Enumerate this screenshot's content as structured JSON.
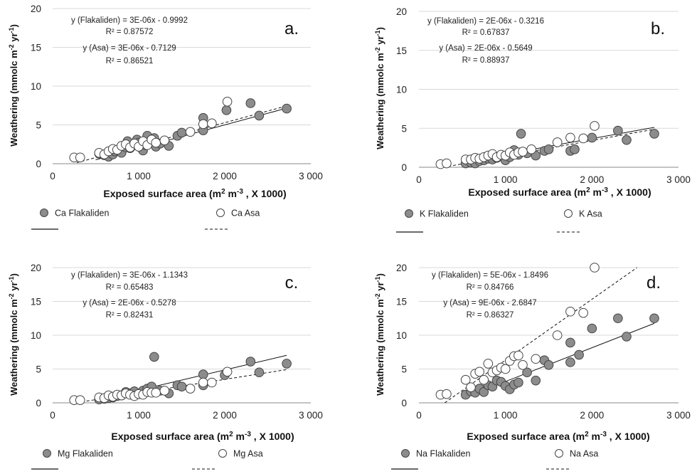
{
  "chart_data": [
    {
      "type": "scatter",
      "panel_label": "a.",
      "ylabel": "Weathering (mmolc m-2 yr-1)",
      "ylabel_main": "Weathering (mmolc m",
      "ylabel_sup1": "-2",
      "ylabel_mid": " yr",
      "ylabel_sup2": "-1",
      "ylabel_end": ")",
      "xlabel": "Exposed surface area (m2 m-3 , X 1000)",
      "xlabel_main": "Exposed surface area (m",
      "xlabel_sup1": "2",
      "xlabel_mid": " m",
      "xlabel_sup2": "-3",
      "xlabel_end": " , X 1000)",
      "xlim": [
        0,
        3000
      ],
      "ylim": [
        0,
        20
      ],
      "x_ticks": [
        "0",
        "1 000",
        "2 000",
        "3 000"
      ],
      "y_ticks": [
        "0",
        "5",
        "10",
        "15",
        "20"
      ],
      "equations": [
        "y (Flakaliden) = 3E-06x - 0.9992",
        "R² = 0.87572",
        "y (Asa) = 3E-06x - 0.7129",
        "R² = 0.86521"
      ],
      "legend": [
        "Ca Flakaliden",
        "Ca Asa"
      ],
      "series": [
        {
          "name": "Ca Flakaliden",
          "fill": "#8c8c8c",
          "points": [
            [
              540,
              1.3
            ],
            [
              600,
              1.1
            ],
            [
              650,
              0.9
            ],
            [
              700,
              1.2
            ],
            [
              720,
              1.6
            ],
            [
              780,
              1.9
            ],
            [
              800,
              1.4
            ],
            [
              850,
              2.1
            ],
            [
              870,
              2.9
            ],
            [
              900,
              2.0
            ],
            [
              950,
              2.4
            ],
            [
              980,
              3.1
            ],
            [
              1000,
              2.7
            ],
            [
              1050,
              1.7
            ],
            [
              1080,
              2.4
            ],
            [
              1100,
              3.6
            ],
            [
              1150,
              2.9
            ],
            [
              1180,
              3.3
            ],
            [
              1200,
              2.2
            ],
            [
              1250,
              2.6
            ],
            [
              1350,
              2.3
            ],
            [
              1450,
              3.6
            ],
            [
              1500,
              4.0
            ],
            [
              1750,
              4.3
            ],
            [
              1750,
              5.9
            ],
            [
              2020,
              6.9
            ],
            [
              2300,
              7.8
            ],
            [
              2400,
              6.2
            ],
            [
              2720,
              7.1
            ]
          ]
        },
        {
          "name": "Ca Asa",
          "fill": "#ffffff",
          "points": [
            [
              250,
              0.8
            ],
            [
              320,
              0.8
            ],
            [
              540,
              1.4
            ],
            [
              600,
              1.2
            ],
            [
              650,
              1.6
            ],
            [
              700,
              1.9
            ],
            [
              750,
              1.8
            ],
            [
              800,
              2.3
            ],
            [
              850,
              2.5
            ],
            [
              900,
              2.1
            ],
            [
              950,
              2.6
            ],
            [
              1000,
              2.2
            ],
            [
              1050,
              2.9
            ],
            [
              1100,
              2.4
            ],
            [
              1150,
              3.1
            ],
            [
              1200,
              2.7
            ],
            [
              1300,
              3.0
            ],
            [
              1600,
              4.1
            ],
            [
              1750,
              5.1
            ],
            [
              1850,
              5.2
            ],
            [
              2030,
              8.0
            ]
          ]
        }
      ],
      "fits": [
        {
          "name": "Flakaliden",
          "slope": 0.003,
          "intercept": -0.9992
        },
        {
          "name": "Asa",
          "slope": 0.003,
          "intercept": -0.7129
        }
      ]
    },
    {
      "type": "scatter",
      "panel_label": "b.",
      "ylabel": "Weathering (mmolc m-2 yr-1)",
      "ylabel_main": "Weathering (mmolc m",
      "ylabel_sup1": "-2",
      "ylabel_mid": " yr",
      "ylabel_sup2": "-1",
      "ylabel_end": ")",
      "xlabel": "Exposed surface area (m2 m-3 , X 1000)",
      "xlabel_main": "Exposed surface area (m",
      "xlabel_sup1": "2",
      "xlabel_mid": " m",
      "xlabel_sup2": "-3",
      "xlabel_end": " , X 1000)",
      "xlim": [
        0,
        3000
      ],
      "ylim": [
        0,
        20
      ],
      "x_ticks": [
        "0",
        "1 000",
        "2 000",
        "3 000"
      ],
      "y_ticks": [
        "0",
        "5",
        "10",
        "15",
        "20"
      ],
      "equations": [
        "y (Flakaliden) = 2E-06x - 0.3216",
        "R² = 0.67837",
        "y (Asa) = 2E-06x - 0.5649",
        "R² = 0.88937"
      ],
      "legend": [
        "K Flakaliden",
        "K Asa"
      ],
      "series": [
        {
          "name": "K Flakaliden",
          "fill": "#8c8c8c",
          "points": [
            [
              540,
              0.5
            ],
            [
              600,
              0.6
            ],
            [
              650,
              0.5
            ],
            [
              700,
              0.8
            ],
            [
              750,
              0.9
            ],
            [
              800,
              1.1
            ],
            [
              850,
              1.0
            ],
            [
              900,
              1.2
            ],
            [
              950,
              1.4
            ],
            [
              1000,
              0.9
            ],
            [
              1050,
              1.3
            ],
            [
              1100,
              2.2
            ],
            [
              1150,
              1.6
            ],
            [
              1180,
              4.3
            ],
            [
              1250,
              1.8
            ],
            [
              1350,
              1.5
            ],
            [
              1450,
              2.1
            ],
            [
              1500,
              2.3
            ],
            [
              1750,
              2.1
            ],
            [
              1800,
              2.3
            ],
            [
              2000,
              3.8
            ],
            [
              2300,
              4.7
            ],
            [
              2400,
              3.5
            ],
            [
              2720,
              4.3
            ]
          ]
        },
        {
          "name": "K Asa",
          "fill": "#ffffff",
          "points": [
            [
              250,
              0.4
            ],
            [
              320,
              0.5
            ],
            [
              540,
              1.0
            ],
            [
              600,
              1.0
            ],
            [
              650,
              1.2
            ],
            [
              700,
              1.1
            ],
            [
              750,
              1.3
            ],
            [
              800,
              1.5
            ],
            [
              850,
              1.7
            ],
            [
              900,
              1.3
            ],
            [
              950,
              1.6
            ],
            [
              1000,
              1.5
            ],
            [
              1050,
              1.9
            ],
            [
              1100,
              1.6
            ],
            [
              1150,
              1.9
            ],
            [
              1200,
              2.0
            ],
            [
              1300,
              2.3
            ],
            [
              1600,
              3.2
            ],
            [
              1750,
              3.8
            ],
            [
              1900,
              3.7
            ],
            [
              2030,
              5.3
            ]
          ]
        }
      ],
      "fits": [
        {
          "name": "Flakaliden",
          "slope": 0.002,
          "intercept": -0.3216
        },
        {
          "name": "Asa",
          "slope": 0.002,
          "intercept": -0.5649
        }
      ]
    },
    {
      "type": "scatter",
      "panel_label": "c.",
      "ylabel": "Weathering (mmolc m-2 yr-1)",
      "ylabel_main": "Weathering (mmolc m",
      "ylabel_sup1": "-2",
      "ylabel_mid": " yr",
      "ylabel_sup2": "-1",
      "ylabel_end": ")",
      "xlabel": "Exposed surface area (m2 m-3 , X 1000)",
      "xlabel_main": "Exposed surface area (m",
      "xlabel_sup1": "2",
      "xlabel_mid": " m",
      "xlabel_sup2": "-3",
      "xlabel_end": " , X 1000)",
      "xlim": [
        0,
        3000
      ],
      "ylim": [
        0,
        20
      ],
      "x_ticks": [
        "0",
        "1 000",
        "2 000",
        "3 000"
      ],
      "y_ticks": [
        "0",
        "5",
        "10",
        "15",
        "20"
      ],
      "equations": [
        "y (Flakaliden) = 3E-06x - 1.1343",
        "R² = 0.65483",
        "y (Asa) = 2E-06x - 0.5278",
        "R² = 0.82431"
      ],
      "legend": [
        "Mg Flakaliden",
        "Mg  Asa"
      ],
      "series": [
        {
          "name": "Mg Flakaliden",
          "fill": "#8c8c8c",
          "points": [
            [
              540,
              0.5
            ],
            [
              600,
              0.6
            ],
            [
              650,
              0.7
            ],
            [
              700,
              0.8
            ],
            [
              750,
              1.0
            ],
            [
              800,
              1.1
            ],
            [
              850,
              1.6
            ],
            [
              900,
              1.4
            ],
            [
              950,
              1.7
            ],
            [
              1000,
              1.3
            ],
            [
              1050,
              1.8
            ],
            [
              1100,
              2.1
            ],
            [
              1150,
              2.4
            ],
            [
              1180,
              6.8
            ],
            [
              1250,
              1.8
            ],
            [
              1350,
              1.4
            ],
            [
              1450,
              2.6
            ],
            [
              1500,
              2.4
            ],
            [
              1750,
              2.6
            ],
            [
              1750,
              4.2
            ],
            [
              2000,
              4.1
            ],
            [
              2300,
              6.1
            ],
            [
              2400,
              4.5
            ],
            [
              2720,
              5.8
            ]
          ]
        },
        {
          "name": "Mg  Asa",
          "fill": "#ffffff",
          "points": [
            [
              250,
              0.4
            ],
            [
              320,
              0.4
            ],
            [
              540,
              0.8
            ],
            [
              600,
              0.7
            ],
            [
              650,
              1.1
            ],
            [
              700,
              0.9
            ],
            [
              750,
              1.2
            ],
            [
              800,
              1.1
            ],
            [
              850,
              1.4
            ],
            [
              900,
              1.2
            ],
            [
              950,
              1.0
            ],
            [
              1000,
              1.3
            ],
            [
              1050,
              1.2
            ],
            [
              1100,
              1.6
            ],
            [
              1150,
              1.5
            ],
            [
              1200,
              1.5
            ],
            [
              1300,
              1.8
            ],
            [
              1600,
              2.1
            ],
            [
              1750,
              3.0
            ],
            [
              1850,
              3.0
            ],
            [
              2030,
              4.6
            ]
          ]
        }
      ],
      "fits": [
        {
          "name": "Flakaliden",
          "slope": 0.003,
          "intercept": -1.1343
        },
        {
          "name": "Asa",
          "slope": 0.002,
          "intercept": -0.5278
        }
      ]
    },
    {
      "type": "scatter",
      "panel_label": "d.",
      "ylabel": "Weathering (mmolc m-2 yr-1)",
      "ylabel_main": "Weathering (mmolc m",
      "ylabel_sup1": "-2",
      "ylabel_mid": " yr",
      "ylabel_sup2": "-1",
      "ylabel_end": ")",
      "xlabel": "Exposed surface area (m2 m-3 , X 1000)",
      "xlabel_main": "Exposed surface area (m",
      "xlabel_sup1": "2",
      "xlabel_mid": " m",
      "xlabel_sup2": "-3",
      "xlabel_end": " , X 1000)",
      "xlim": [
        0,
        3000
      ],
      "ylim": [
        0,
        20
      ],
      "x_ticks": [
        "0",
        "1 000",
        "2 000",
        "3 000"
      ],
      "y_ticks": [
        "0",
        "5",
        "10",
        "15",
        "20"
      ],
      "equations": [
        "y (Flakaliden) = 5E-06x - 1.8496",
        "R² = 0.84766",
        "y (Asa) = 9E-06x - 2.6847",
        "R² = 0.86327"
      ],
      "legend": [
        "Na Flakaliden",
        "Na Asa"
      ],
      "series": [
        {
          "name": "Na Flakaliden",
          "fill": "#8c8c8c",
          "points": [
            [
              540,
              1.2
            ],
            [
              600,
              1.7
            ],
            [
              650,
              1.5
            ],
            [
              700,
              2.1
            ],
            [
              750,
              1.6
            ],
            [
              800,
              2.6
            ],
            [
              850,
              2.4
            ],
            [
              900,
              3.3
            ],
            [
              950,
              3.1
            ],
            [
              1000,
              2.5
            ],
            [
              1050,
              2.0
            ],
            [
              1100,
              2.7
            ],
            [
              1150,
              3.0
            ],
            [
              1250,
              4.5
            ],
            [
              1350,
              3.3
            ],
            [
              1450,
              6.3
            ],
            [
              1500,
              5.6
            ],
            [
              1750,
              6.0
            ],
            [
              1750,
              8.9
            ],
            [
              1850,
              7.1
            ],
            [
              2000,
              11.0
            ],
            [
              2300,
              12.5
            ],
            [
              2400,
              9.8
            ],
            [
              2720,
              12.5
            ]
          ]
        },
        {
          "name": "Na Asa",
          "fill": "#ffffff",
          "points": [
            [
              250,
              1.2
            ],
            [
              320,
              1.3
            ],
            [
              540,
              3.4
            ],
            [
              600,
              2.3
            ],
            [
              650,
              4.3
            ],
            [
              700,
              4.6
            ],
            [
              750,
              3.4
            ],
            [
              800,
              5.8
            ],
            [
              850,
              4.5
            ],
            [
              900,
              4.8
            ],
            [
              950,
              5.2
            ],
            [
              1000,
              5.0
            ],
            [
              1050,
              6.2
            ],
            [
              1100,
              6.9
            ],
            [
              1150,
              7.0
            ],
            [
              1200,
              5.6
            ],
            [
              1350,
              6.5
            ],
            [
              1600,
              10.0
            ],
            [
              1750,
              13.5
            ],
            [
              1900,
              13.3
            ],
            [
              2030,
              20.0
            ]
          ]
        }
      ],
      "fits": [
        {
          "name": "Flakaliden",
          "slope": 0.005,
          "intercept": -1.8496
        },
        {
          "name": "Asa",
          "slope": 0.009,
          "intercept": -2.6847
        }
      ]
    }
  ]
}
